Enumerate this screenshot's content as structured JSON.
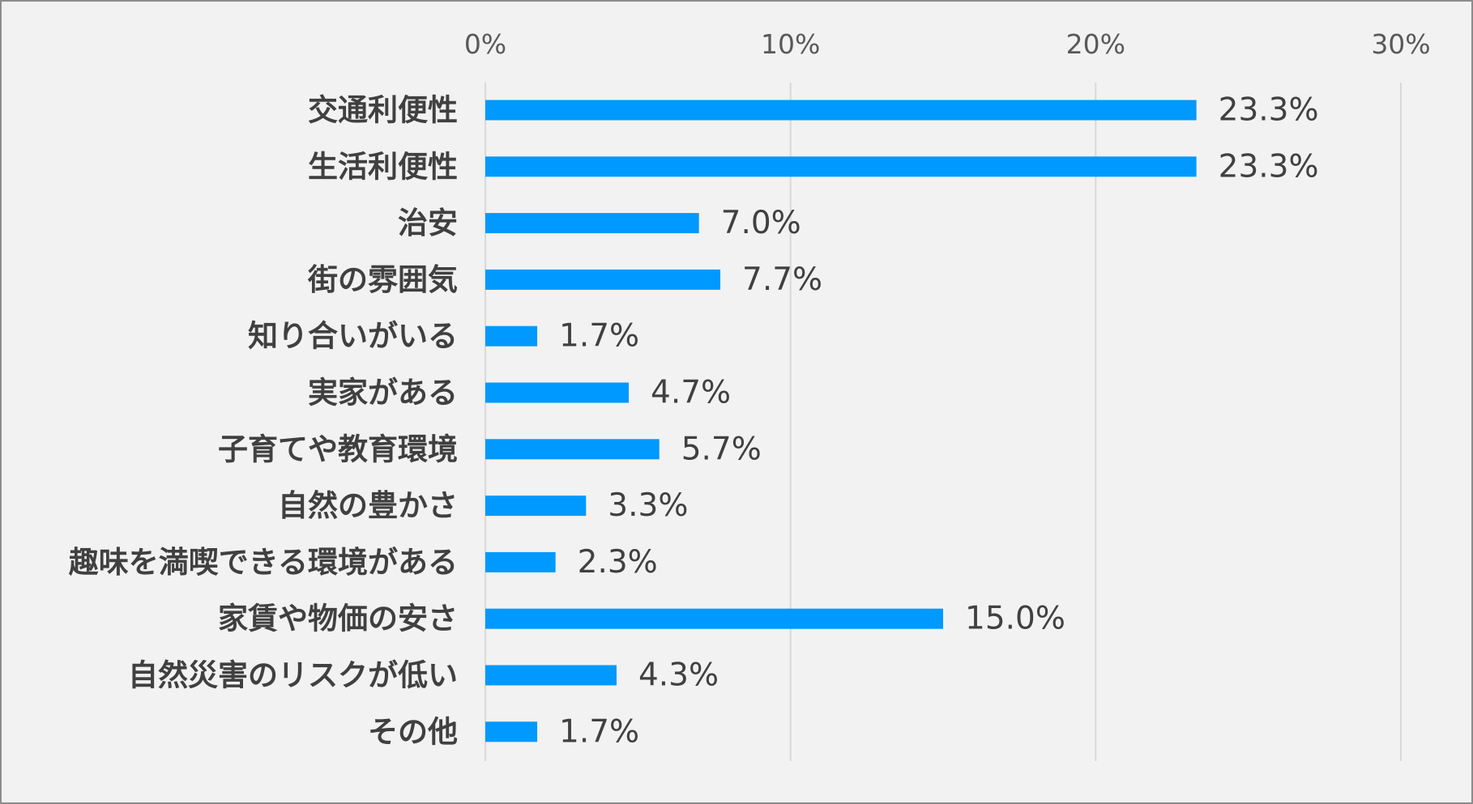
{
  "chart_data": {
    "type": "bar",
    "orientation": "horizontal",
    "categories": [
      "交通利便性",
      "生活利便性",
      "治安",
      "街の雰囲気",
      "知り合いがいる",
      "実家がある",
      "子育てや教育環境",
      "自然の豊かさ",
      "趣味を満喫できる環境がある",
      "家賃や物価の安さ",
      "自然災害のリスクが低い",
      "その他"
    ],
    "values": [
      23.3,
      23.3,
      7.0,
      7.7,
      1.7,
      4.7,
      5.7,
      3.3,
      2.3,
      15.0,
      4.3,
      1.7
    ],
    "value_labels": [
      "23.3%",
      "23.3%",
      "7.0%",
      "7.7%",
      "1.7%",
      "4.7%",
      "5.7%",
      "3.3%",
      "2.3%",
      "15.0%",
      "4.3%",
      "1.7%"
    ],
    "xlim": [
      0,
      30
    ],
    "xticks": [
      0,
      10,
      20,
      30
    ],
    "xtick_labels": [
      "0%",
      "10%",
      "20%",
      "30%"
    ],
    "x_axis_position": "top",
    "grid": true,
    "title": "",
    "xlabel": "",
    "ylabel": "",
    "bar_color": "#0099ff",
    "background_color": "#f2f2f2"
  }
}
